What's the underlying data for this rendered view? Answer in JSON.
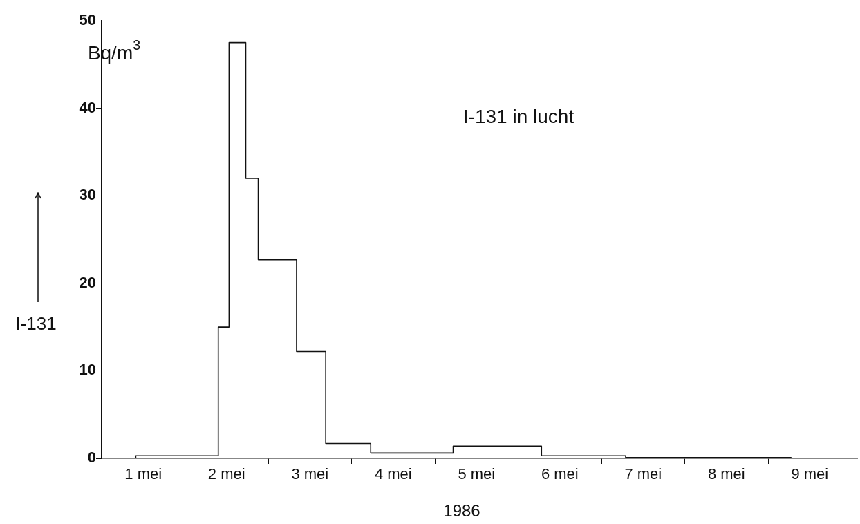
{
  "chart_data": {
    "type": "step",
    "xlabel": "1986",
    "ylabel": "I-131",
    "annotations": [
      "Bq/m$^{3}$",
      "I-131 in lucht"
    ],
    "series": [
      {
        "color": "#111111",
        "x": [
          0,
          0.41,
          1.4,
          1.53,
          1.73,
          1.88,
          2.34,
          2.69,
          3.23,
          4.22,
          5.28,
          6.29,
          8.28
        ],
        "values": [
          0,
          0.3,
          15,
          47.5,
          32,
          22.7,
          12.2,
          1.7,
          0.6,
          1.4,
          0.3,
          0.1,
          0.1
        ]
      }
    ],
    "xlim": [
      0,
      9.07
    ],
    "xticks": [
      {
        "value": 0.5,
        "label": "1 mei"
      },
      {
        "value": 1,
        "label": null
      },
      {
        "value": 1.5,
        "label": "2 mei"
      },
      {
        "value": 2,
        "label": null
      },
      {
        "value": 2.5,
        "label": "3 mei"
      },
      {
        "value": 3,
        "label": null
      },
      {
        "value": 3.5,
        "label": "4 mei"
      },
      {
        "value": 4,
        "label": null
      },
      {
        "value": 4.5,
        "label": "5 mei"
      },
      {
        "value": 5,
        "label": null
      },
      {
        "value": 5.5,
        "label": "6 mei"
      },
      {
        "value": 6,
        "label": null
      },
      {
        "value": 6.5,
        "label": "7 mei"
      },
      {
        "value": 7,
        "label": null
      },
      {
        "value": 7.5,
        "label": "8 mei"
      },
      {
        "value": 8,
        "label": null
      },
      {
        "value": 8.5,
        "label": "9 mei"
      }
    ],
    "ylim": [
      0,
      50
    ],
    "yticks": [
      0,
      10,
      20,
      30,
      40,
      50
    ],
    "grid": false,
    "legend": false,
    "marker": "none",
    "line_style": "solid"
  }
}
